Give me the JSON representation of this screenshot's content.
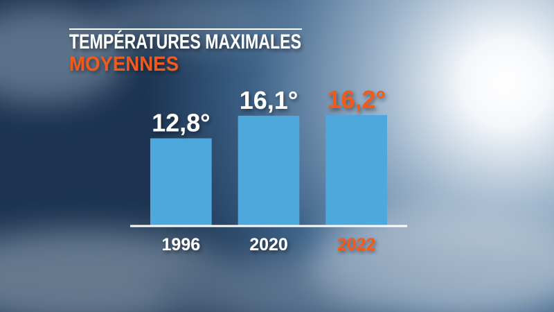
{
  "chart_data": {
    "type": "bar",
    "title": "TEMPÉRATURES MAXIMALES",
    "subtitle": "MOYENNES",
    "categories": [
      "1996",
      "2020",
      "2022"
    ],
    "values": [
      12.8,
      16.1,
      16.2
    ],
    "value_labels": [
      "12,8°",
      "16,1°",
      "16,2°"
    ],
    "color": "#4fa8dc",
    "label_colors": [
      "#ffffff",
      "#ffffff",
      "#f05a1a"
    ],
    "ylim": [
      0,
      17
    ],
    "grid": false
  }
}
